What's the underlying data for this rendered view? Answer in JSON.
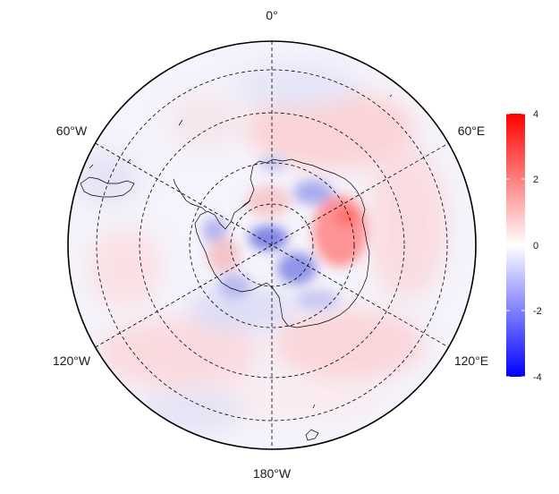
{
  "map": {
    "projection": "south-polar-stereographic",
    "longitude_labels": {
      "top": "0°",
      "upper_left": "60°W",
      "upper_right": "60°E",
      "lower_left": "120°W",
      "lower_right": "120°E",
      "bottom": "180°W"
    }
  },
  "colorbar": {
    "ticks": [
      "4",
      "2",
      "0",
      "-2",
      "-4"
    ],
    "min": -4,
    "max": 4,
    "colors": {
      "high": "#ff0000",
      "mid": "#ffffff",
      "low": "#0000ff"
    }
  },
  "colors": {
    "background": "#ffffff",
    "outline": "#000000",
    "graticule": "#000000"
  }
}
